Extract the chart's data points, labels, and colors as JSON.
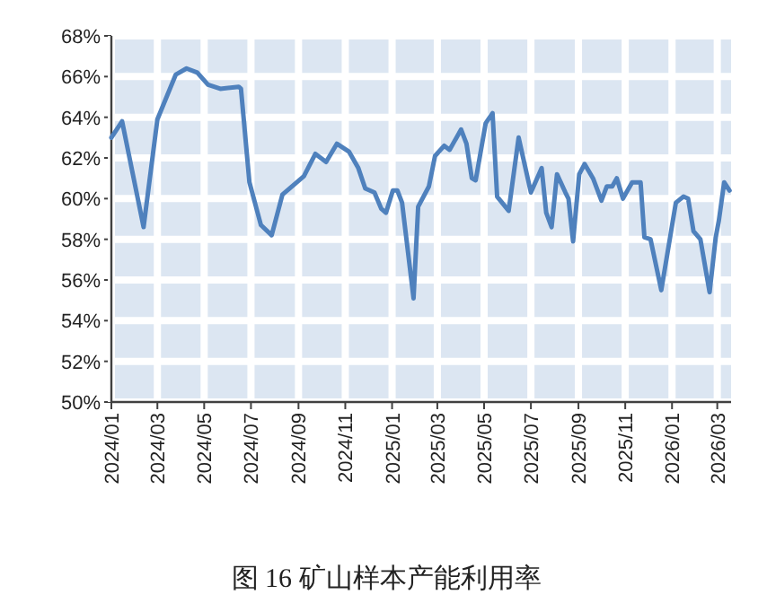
{
  "chart_data": {
    "type": "line",
    "title": "图 16 矿山样本产能利用率",
    "x": [
      "2024-01-01",
      "2024-01-15",
      "2024-02-12",
      "2024-03-01",
      "2024-03-25",
      "2024-04-08",
      "2024-04-22",
      "2024-05-06",
      "2024-05-22",
      "2024-06-15",
      "2024-06-18",
      "2024-06-29",
      "2024-07-14",
      "2024-07-28",
      "2024-08-11",
      "2024-09-08",
      "2024-09-23",
      "2024-10-07",
      "2024-10-21",
      "2024-11-06",
      "2024-11-18",
      "2024-11-27",
      "2024-12-09",
      "2024-12-18",
      "2024-12-24",
      "2025-01-02",
      "2025-01-08",
      "2025-01-14",
      "2025-01-29",
      "2025-02-04",
      "2025-02-18",
      "2025-02-26",
      "2025-03-10",
      "2025-03-17",
      "2025-04-01",
      "2025-04-08",
      "2025-04-15",
      "2025-04-20",
      "2025-05-03",
      "2025-05-12",
      "2025-05-18",
      "2025-06-02",
      "2025-06-15",
      "2025-07-01",
      "2025-07-15",
      "2025-07-21",
      "2025-07-28",
      "2025-08-04",
      "2025-08-15",
      "2025-08-19",
      "2025-08-25",
      "2025-09-02",
      "2025-09-09",
      "2025-09-20",
      "2025-10-01",
      "2025-10-08",
      "2025-10-15",
      "2025-10-21",
      "2025-10-29",
      "2025-11-10",
      "2025-11-21",
      "2025-11-26",
      "2025-12-04",
      "2025-12-18",
      "2026-01-06",
      "2026-01-16",
      "2026-01-22",
      "2026-01-29",
      "2026-02-07",
      "2026-02-19",
      "2026-02-27",
      "2026-03-03",
      "2026-03-10",
      "2026-03-17"
    ],
    "series": [
      {
        "color": "#4f81bd",
        "values": [
          63.0,
          63.8,
          58.6,
          63.9,
          66.1,
          66.4,
          66.2,
          65.6,
          65.4,
          65.5,
          65.4,
          60.8,
          58.7,
          58.2,
          60.2,
          61.1,
          62.2,
          61.8,
          62.7,
          62.3,
          61.5,
          60.5,
          60.3,
          59.5,
          59.3,
          60.4,
          60.4,
          59.8,
          55.1,
          59.6,
          60.6,
          62.1,
          62.6,
          62.4,
          63.4,
          62.7,
          61.0,
          60.9,
          63.7,
          64.2,
          60.1,
          59.4,
          63.0,
          60.3,
          61.5,
          59.3,
          58.6,
          61.2,
          60.3,
          60.0,
          57.9,
          61.2,
          61.7,
          61.0,
          59.9,
          60.6,
          60.6,
          61.0,
          60.0,
          60.8,
          60.8,
          58.1,
          58.0,
          55.5,
          59.8,
          60.1,
          60.0,
          58.4,
          58.0,
          55.4,
          58.1,
          58.9,
          60.8,
          60.4
        ]
      }
    ],
    "xlim": [
      "2024-01-01",
      "2026-03-19"
    ],
    "ylim": [
      50,
      68
    ],
    "yticks": [
      {
        "value": 50,
        "label": "50%"
      },
      {
        "value": 52,
        "label": "52%"
      },
      {
        "value": 54,
        "label": "54%"
      },
      {
        "value": 56,
        "label": "56%"
      },
      {
        "value": 58,
        "label": "58%"
      },
      {
        "value": 60,
        "label": "60%"
      },
      {
        "value": 62,
        "label": "62%"
      },
      {
        "value": 64,
        "label": "64%"
      },
      {
        "value": 66,
        "label": "66%"
      },
      {
        "value": 68,
        "label": "68%"
      }
    ],
    "xticks": [
      {
        "value": "2024-01",
        "label": "2024/01"
      },
      {
        "value": "2024-03",
        "label": "2024/03"
      },
      {
        "value": "2024-05",
        "label": "2024/05"
      },
      {
        "value": "2024-07",
        "label": "2024/07"
      },
      {
        "value": "2024-09",
        "label": "2024/09"
      },
      {
        "value": "2024-11",
        "label": "2024/11"
      },
      {
        "value": "2025-01",
        "label": "2025/01"
      },
      {
        "value": "2025-03",
        "label": "2025/03"
      },
      {
        "value": "2025-05",
        "label": "2025/05"
      },
      {
        "value": "2025-07",
        "label": "2025/07"
      },
      {
        "value": "2025-09",
        "label": "2025/09"
      },
      {
        "value": "2025-11",
        "label": "2025/11"
      },
      {
        "value": "2026-01",
        "label": "2026/01"
      },
      {
        "value": "2026-03",
        "label": "2026/03"
      }
    ],
    "grid": true,
    "line_style": "solid"
  }
}
